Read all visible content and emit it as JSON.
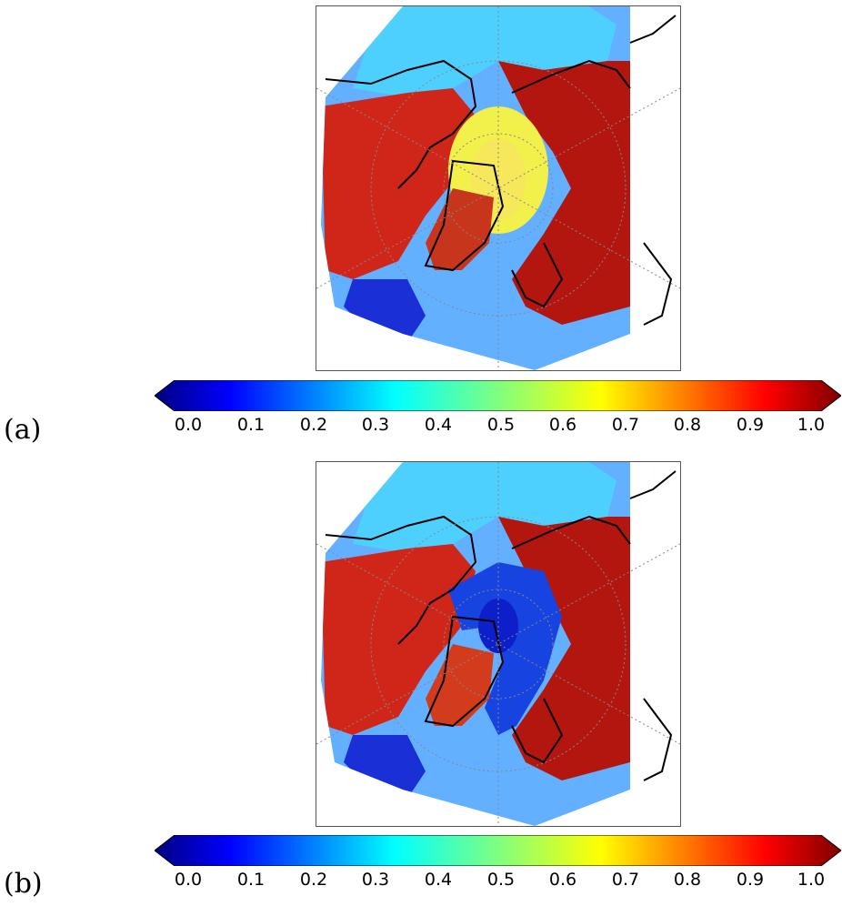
{
  "figure": {
    "colormap": "jet",
    "colormap_stops": [
      "#00007f",
      "#0000ff",
      "#007fff",
      "#00ffff",
      "#7fff7f",
      "#ffff00",
      "#ff7f00",
      "#ff0000",
      "#7f0000"
    ],
    "colorbar_ticks": [
      "0.0",
      "0.1",
      "0.2",
      "0.3",
      "0.4",
      "0.5",
      "0.6",
      "0.7",
      "0.8",
      "0.9",
      "1.0"
    ],
    "colorbar_range": [
      0.0,
      1.0
    ],
    "colorbar_extend": "both",
    "projection": "north polar stereographic",
    "panels": [
      {
        "label": "(a)",
        "central_arctic_ocean_value": 0.65,
        "greenland_value": 0.88,
        "land_value": 0.9,
        "ocean_periphery_value": 0.3
      },
      {
        "label": "(b)",
        "central_arctic_ocean_value": 0.12,
        "greenland_value": 0.82,
        "land_value": 0.9,
        "ocean_periphery_value": 0.3
      }
    ]
  }
}
